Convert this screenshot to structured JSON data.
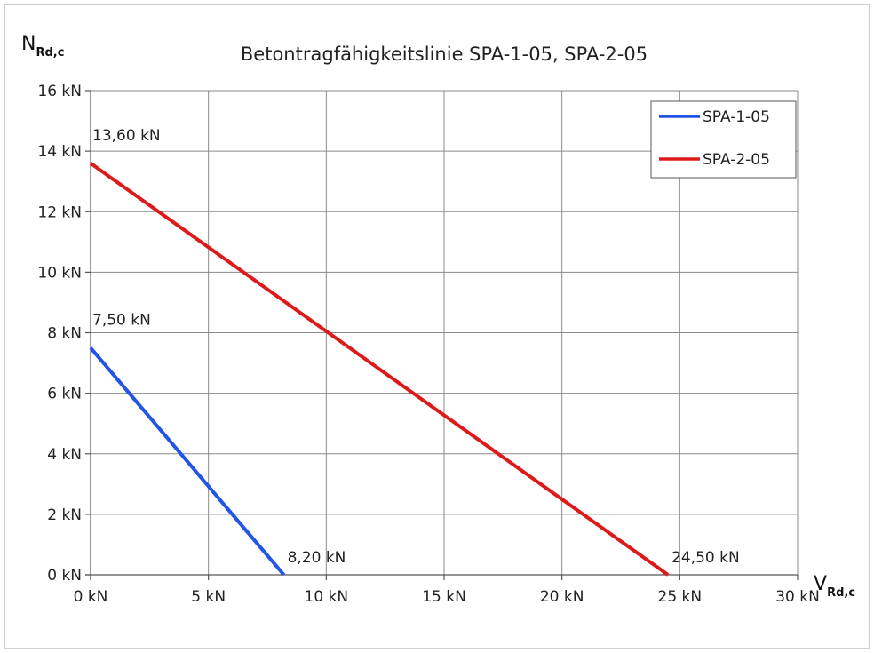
{
  "chart_data": {
    "type": "line",
    "title": "Betontragfähigkeitslinie SPA-1-05, SPA-2-05",
    "ylabel": {
      "main": "N",
      "sub": "Rd,c"
    },
    "xlabel": {
      "main": "V",
      "sub": "Rd,c"
    },
    "xlim": [
      0,
      30
    ],
    "ylim": [
      0,
      16
    ],
    "x_ticks": [
      0,
      5,
      10,
      15,
      20,
      25,
      30
    ],
    "y_ticks": [
      0,
      2,
      4,
      6,
      8,
      10,
      12,
      14,
      16
    ],
    "x_tick_labels": [
      "0 kN",
      "5 kN",
      "10 kN",
      "15 kN",
      "20 kN",
      "25 kN",
      "30 kN"
    ],
    "y_tick_labels": [
      "0 kN",
      "2 kN",
      "4 kN",
      "6 kN",
      "8 kN",
      "10 kN",
      "12 kN",
      "14 kN",
      "16 kN"
    ],
    "grid": true,
    "legend_position": "top-right",
    "series": [
      {
        "name": "SPA-1-05",
        "color": "#2255e6",
        "x": [
          0,
          8.2
        ],
        "y": [
          7.5,
          0
        ]
      },
      {
        "name": "SPA-2-05",
        "color": "#dd1a1a",
        "x": [
          0,
          24.5
        ],
        "y": [
          13.6,
          0
        ]
      }
    ],
    "annotations": [
      {
        "text": "13,60 kN",
        "x": 0,
        "y": 13.6
      },
      {
        "text": "7,50 kN",
        "x": 0,
        "y": 7.5
      },
      {
        "text": "8,20 kN",
        "x": 8.2,
        "y": 0
      },
      {
        "text": "24,50 kN",
        "x": 24.5,
        "y": 0
      }
    ]
  }
}
